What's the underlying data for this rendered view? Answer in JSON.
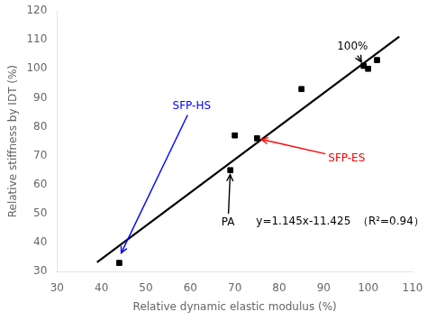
{
  "chart_data": {
    "type": "scatter",
    "xlabel": "Relative dynamic elastic modulus (%)",
    "ylabel": "Relative stiffness by IDT (%)",
    "series": [
      {
        "type": "scatter",
        "color": "black",
        "marker": "square",
        "x": [
          44,
          69,
          70,
          75,
          85,
          99,
          100,
          102
        ],
        "values": [
          33,
          65,
          77,
          76,
          93,
          101,
          100,
          103
        ]
      },
      {
        "type": "line",
        "color": "black",
        "line_style": "solid",
        "x": [
          39,
          107
        ],
        "values": [
          33.23,
          111.09
        ]
      }
    ],
    "xlim": [
      30,
      110
    ],
    "xticks": [
      30,
      40,
      50,
      60,
      70,
      80,
      90,
      100,
      110
    ],
    "ylim": [
      30,
      120
    ],
    "yticks": [
      30,
      40,
      50,
      60,
      70,
      80,
      90,
      100,
      110,
      120
    ],
    "grid": false,
    "annotations": [
      {
        "text": "y=1.145x-11.425  （R²=0.94）",
        "color": "black"
      },
      {
        "text": "100%",
        "x": 99,
        "y": 101,
        "text_x": 93,
        "text_y": 107.5,
        "color": "black"
      },
      {
        "text": "SFP-HS",
        "x": 44,
        "y": 35,
        "text_x": 56,
        "text_y": 87,
        "color": "blue"
      },
      {
        "text": "SFP-ES",
        "x": 75,
        "y": 76,
        "text_x": 91,
        "text_y": 69,
        "color": "red"
      },
      {
        "text": "PA",
        "x": 69,
        "y": 65,
        "text_x": 67,
        "text_y": 47,
        "color": "black"
      }
    ]
  }
}
